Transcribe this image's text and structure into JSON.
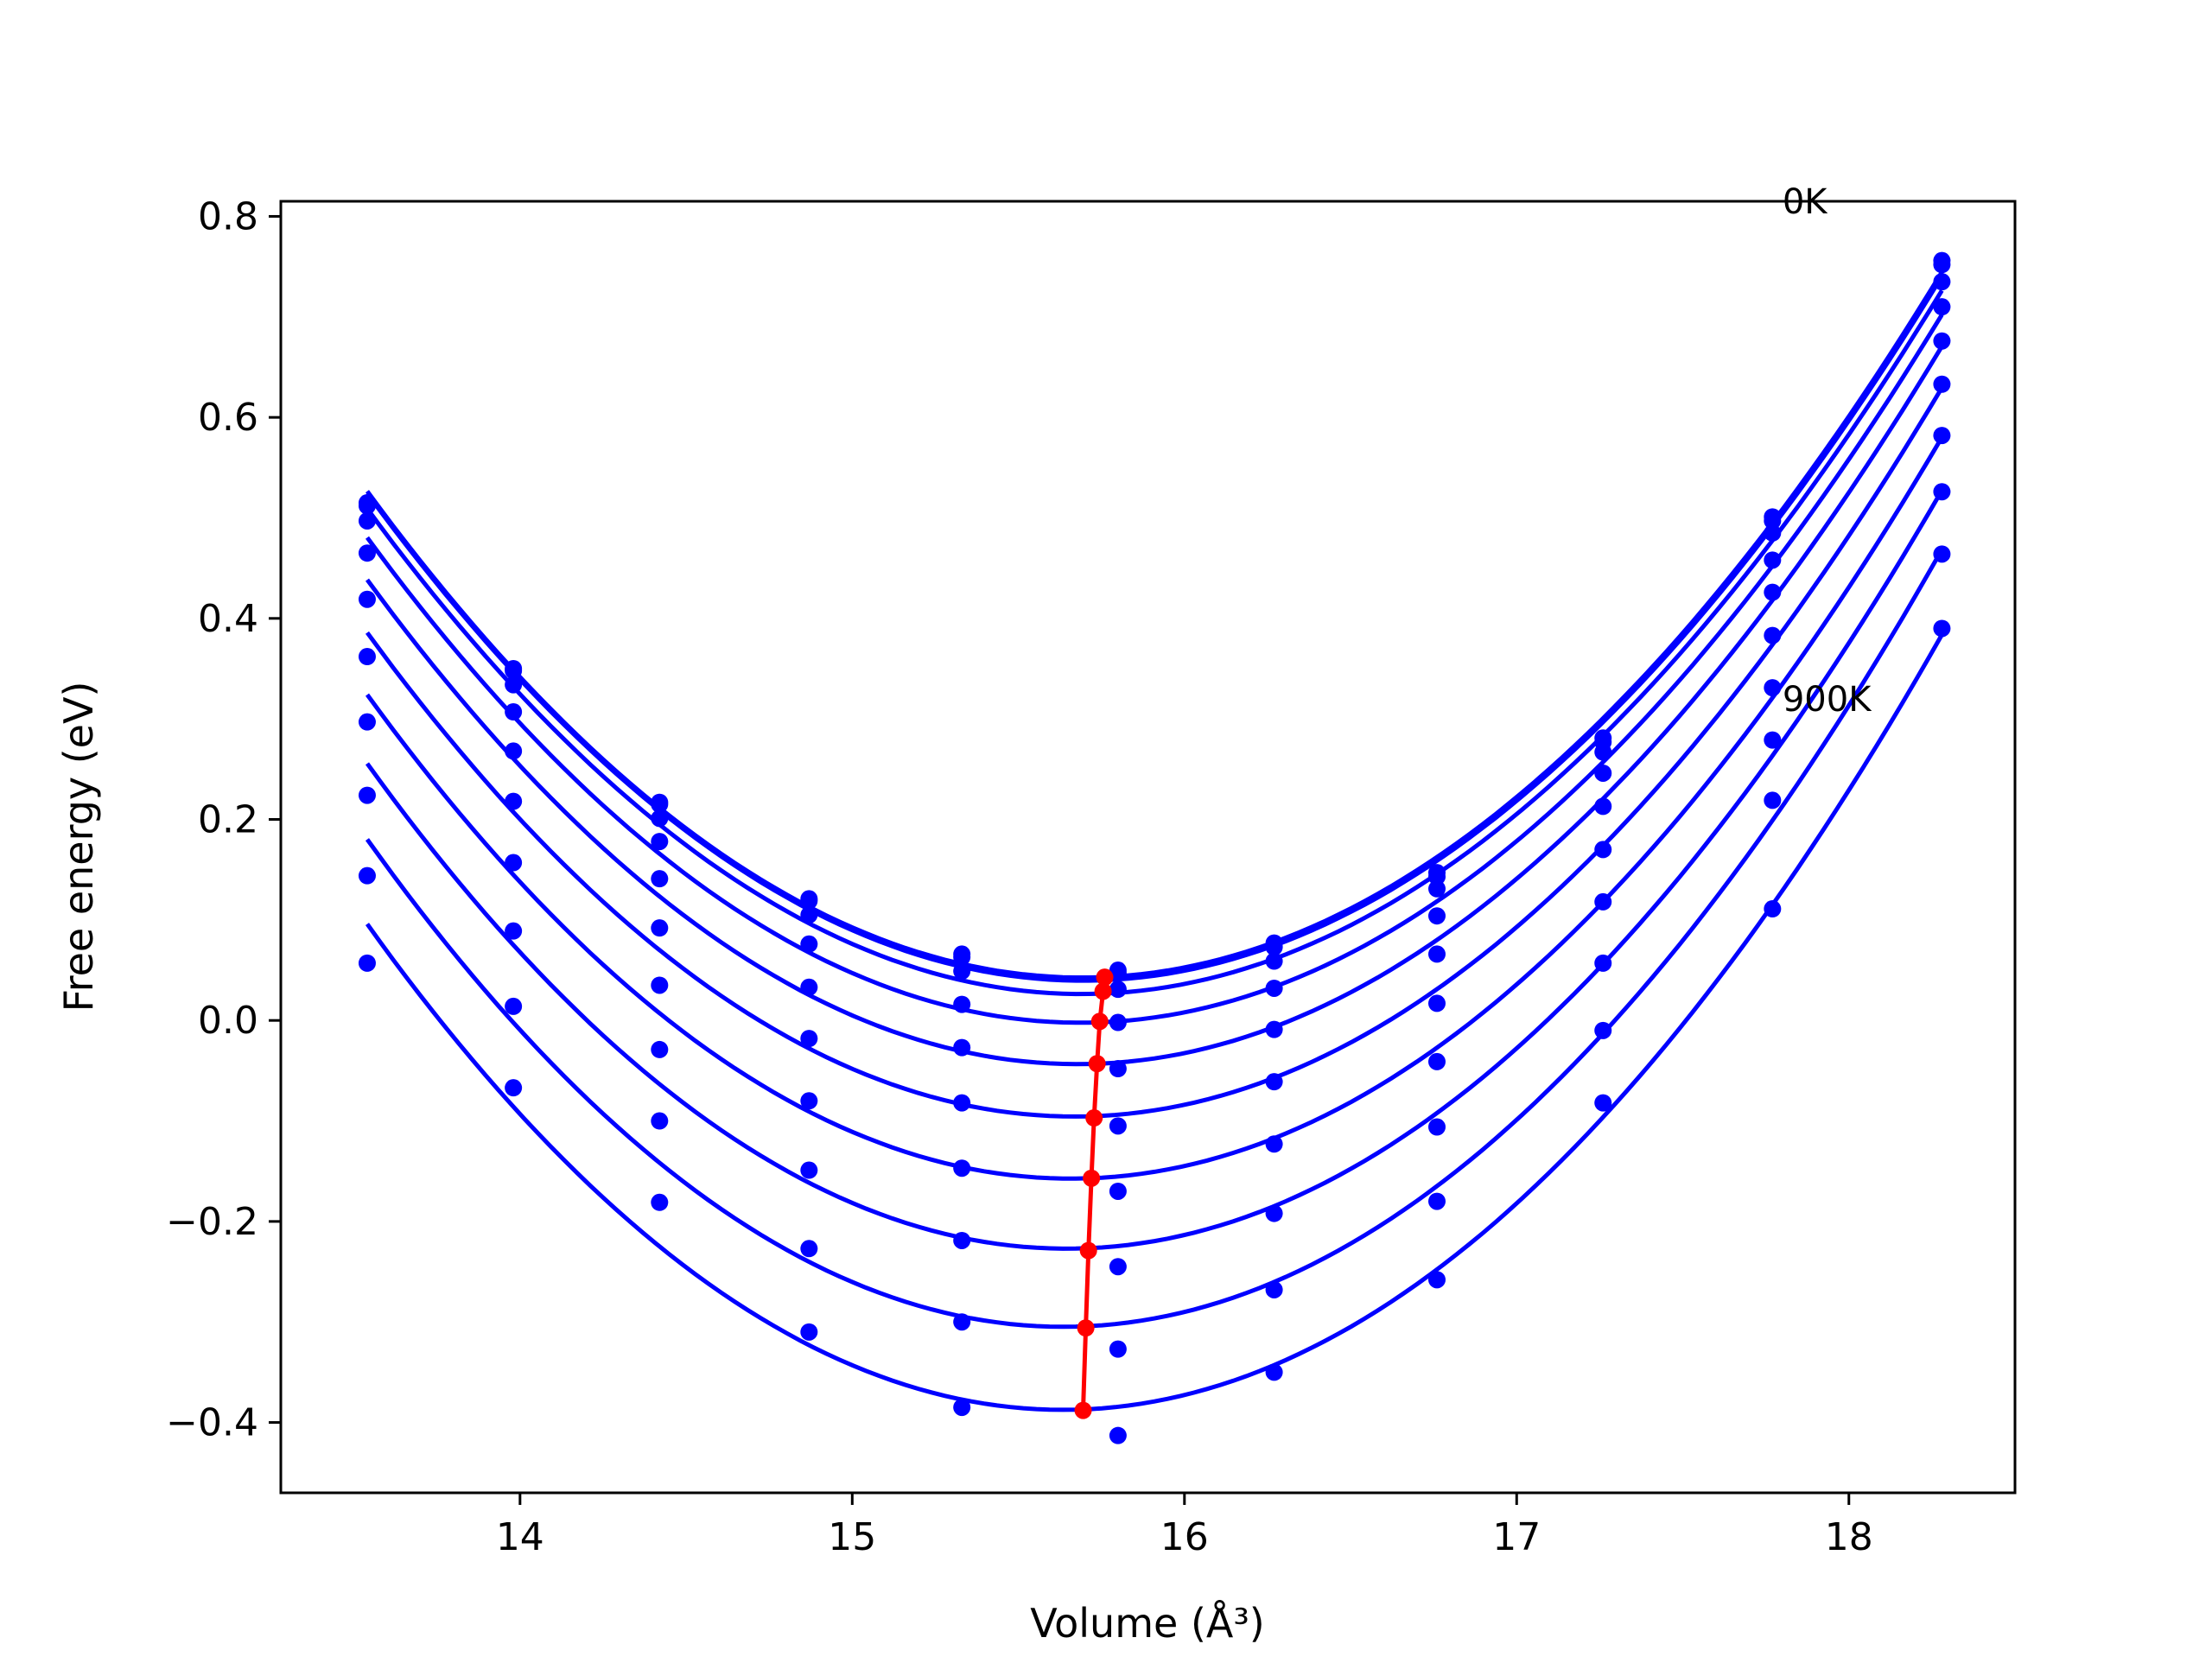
{
  "chart_data": {
    "type": "scatter",
    "title": "",
    "xlabel": "Volume (Å³)",
    "ylabel": "Free energy (eV)",
    "xlim": [
      13.28,
      18.5
    ],
    "ylim": [
      -0.47,
      0.815
    ],
    "xticks": [
      14,
      15,
      16,
      17,
      18
    ],
    "yticks": [
      -0.4,
      -0.2,
      0.0,
      0.2,
      0.4,
      0.6,
      0.8
    ],
    "ytick_labels": [
      "−0.4",
      "−0.2",
      "0.0",
      "0.2",
      "0.4",
      "0.6",
      "0.8"
    ],
    "grid": false,
    "legend": "none",
    "colors": {
      "points": "#0000ff",
      "fit": "#0000ff",
      "equilibrium": "#ff0000"
    },
    "x": [
      13.54,
      13.98,
      14.42,
      14.87,
      15.33,
      15.8,
      16.27,
      16.76,
      17.26,
      17.77,
      18.28
    ],
    "series": [
      {
        "values": [
          0.515,
          0.35,
          0.217,
          0.121,
          0.066,
          0.05,
          0.077,
          0.147,
          0.281,
          0.501,
          0.756
        ]
      },
      {
        "values": [
          0.512,
          0.348,
          0.215,
          0.119,
          0.063,
          0.047,
          0.073,
          0.143,
          0.277,
          0.497,
          0.752
        ]
      },
      {
        "values": [
          0.497,
          0.334,
          0.201,
          0.105,
          0.049,
          0.031,
          0.059,
          0.131,
          0.267,
          0.485,
          0.735
        ]
      },
      {
        "values": [
          0.465,
          0.307,
          0.178,
          0.076,
          0.016,
          -0.002,
          0.032,
          0.104,
          0.246,
          0.458,
          0.71
        ]
      },
      {
        "values": [
          0.419,
          0.268,
          0.141,
          0.033,
          -0.027,
          -0.048,
          -0.009,
          0.066,
          0.213,
          0.426,
          0.676
        ]
      },
      {
        "values": [
          0.362,
          0.218,
          0.092,
          -0.018,
          -0.082,
          -0.105,
          -0.061,
          0.017,
          0.17,
          0.383,
          0.633
        ]
      },
      {
        "values": [
          0.297,
          0.157,
          0.035,
          -0.08,
          -0.147,
          -0.17,
          -0.123,
          -0.041,
          0.118,
          0.331,
          0.582
        ]
      },
      {
        "values": [
          0.224,
          0.089,
          -0.029,
          -0.149,
          -0.219,
          -0.245,
          -0.192,
          -0.106,
          0.057,
          0.279,
          0.526
        ]
      },
      {
        "values": [
          0.144,
          0.014,
          -0.1,
          -0.227,
          -0.3,
          -0.327,
          -0.268,
          -0.18,
          -0.01,
          0.219,
          0.464
        ]
      },
      {
        "values": [
          0.057,
          -0.067,
          -0.181,
          -0.31,
          -0.385,
          -0.413,
          -0.35,
          -0.258,
          -0.082,
          0.111,
          0.39
        ]
      }
    ],
    "equilibrium": {
      "x": [
        15.76,
        15.755,
        15.745,
        15.737,
        15.728,
        15.72,
        15.711,
        15.703,
        15.695
      ],
      "y": [
        0.043,
        0.029,
        -0.001,
        -0.043,
        -0.097,
        -0.157,
        -0.229,
        -0.306,
        -0.388
      ]
    },
    "annotations": [
      {
        "text": "0K",
        "x": 17.8,
        "y": 0.815
      },
      {
        "text": "900K",
        "x": 17.8,
        "y": 0.32
      }
    ]
  }
}
